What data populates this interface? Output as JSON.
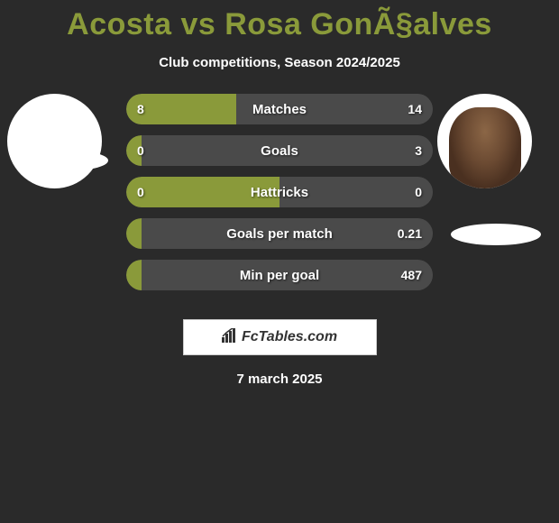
{
  "title": "Acosta vs Rosa GonÃ§alves",
  "subtitle": "Club competitions, Season 2024/2025",
  "date": "7 march 2025",
  "footer_logo_text": "FcTables.com",
  "colors": {
    "background": "#2a2a2a",
    "accent": "#8a9a3a",
    "bar_empty": "#4a4a4a",
    "text": "#ffffff",
    "avatar_bg": "#ffffff"
  },
  "stats": [
    {
      "label": "Matches",
      "left_value": "8",
      "right_value": "14",
      "left_pct": 36,
      "right_pct": 64,
      "left_color": "#8a9a3a",
      "right_color": "#4a4a4a"
    },
    {
      "label": "Goals",
      "left_value": "0",
      "right_value": "3",
      "left_pct": 5,
      "right_pct": 95,
      "left_color": "#8a9a3a",
      "right_color": "#4a4a4a"
    },
    {
      "label": "Hattricks",
      "left_value": "0",
      "right_value": "0",
      "left_pct": 50,
      "right_pct": 50,
      "left_color": "#8a9a3a",
      "right_color": "#4a4a4a"
    },
    {
      "label": "Goals per match",
      "left_value": "",
      "right_value": "0.21",
      "left_pct": 5,
      "right_pct": 95,
      "left_color": "#8a9a3a",
      "right_color": "#4a4a4a"
    },
    {
      "label": "Min per goal",
      "left_value": "",
      "right_value": "487",
      "left_pct": 5,
      "right_pct": 95,
      "left_color": "#8a9a3a",
      "right_color": "#4a4a4a"
    }
  ]
}
